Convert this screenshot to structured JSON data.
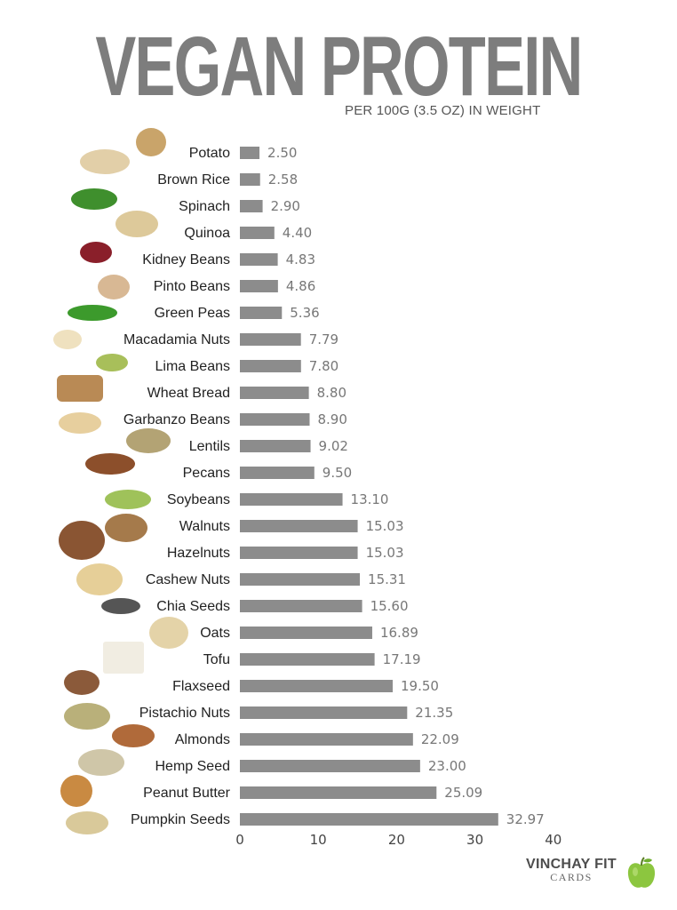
{
  "header": {
    "title": "VEGAN PROTEIN",
    "subtitle": "PER  100G (3.5 OZ) IN WEIGHT"
  },
  "logo": {
    "main": "VINCHAY FIT",
    "sub": "CARDS",
    "icon": "green-apple-icon"
  },
  "colors": {
    "bar": "#8c8c8c",
    "title": "#7d7d7d",
    "apple": "#8cc63f"
  },
  "chart_data": {
    "type": "bar",
    "orientation": "horizontal",
    "categories": [
      "Potato",
      "Brown Rice",
      "Spinach",
      "Quinoa",
      "Kidney Beans",
      "Pinto Beans",
      "Green Peas",
      "Macadamia Nuts",
      "Lima Beans",
      "Wheat Bread",
      "Garbanzo Beans",
      "Lentils",
      "Pecans",
      "Soybeans",
      "Walnuts",
      "Hazelnuts",
      "Cashew Nuts",
      "Chia Seeds",
      "Oats",
      "Tofu",
      "Flaxseed",
      "Pistachio Nuts",
      "Almonds",
      "Hemp Seed",
      "Peanut Butter",
      "Pumpkin Seeds"
    ],
    "values": [
      2.5,
      2.58,
      2.9,
      4.4,
      4.83,
      4.86,
      5.36,
      7.79,
      7.8,
      8.8,
      8.9,
      9.02,
      9.5,
      13.1,
      15.03,
      15.03,
      15.31,
      15.6,
      16.89,
      17.19,
      19.5,
      21.35,
      22.09,
      23.0,
      25.09,
      32.97
    ],
    "value_labels": [
      "2.50",
      "2.58",
      "2.90",
      "4.40",
      "4.83",
      "4.86",
      "5.36",
      "7.79",
      "7.80",
      "8.80",
      "8.90",
      "9.02",
      "9.50",
      "13.10",
      "15.03",
      "15.03",
      "15.31",
      "15.60",
      "16.89",
      "17.19",
      "19.50",
      "21.35",
      "22.09",
      "23.00",
      "25.09",
      "32.97"
    ],
    "xticks": [
      0,
      10,
      20,
      30,
      40
    ],
    "xlim": [
      0,
      40
    ],
    "grid": false,
    "legend": "none",
    "title": "VEGAN PROTEIN",
    "subtitle": "PER  100G (3.5 OZ) IN WEIGHT"
  }
}
